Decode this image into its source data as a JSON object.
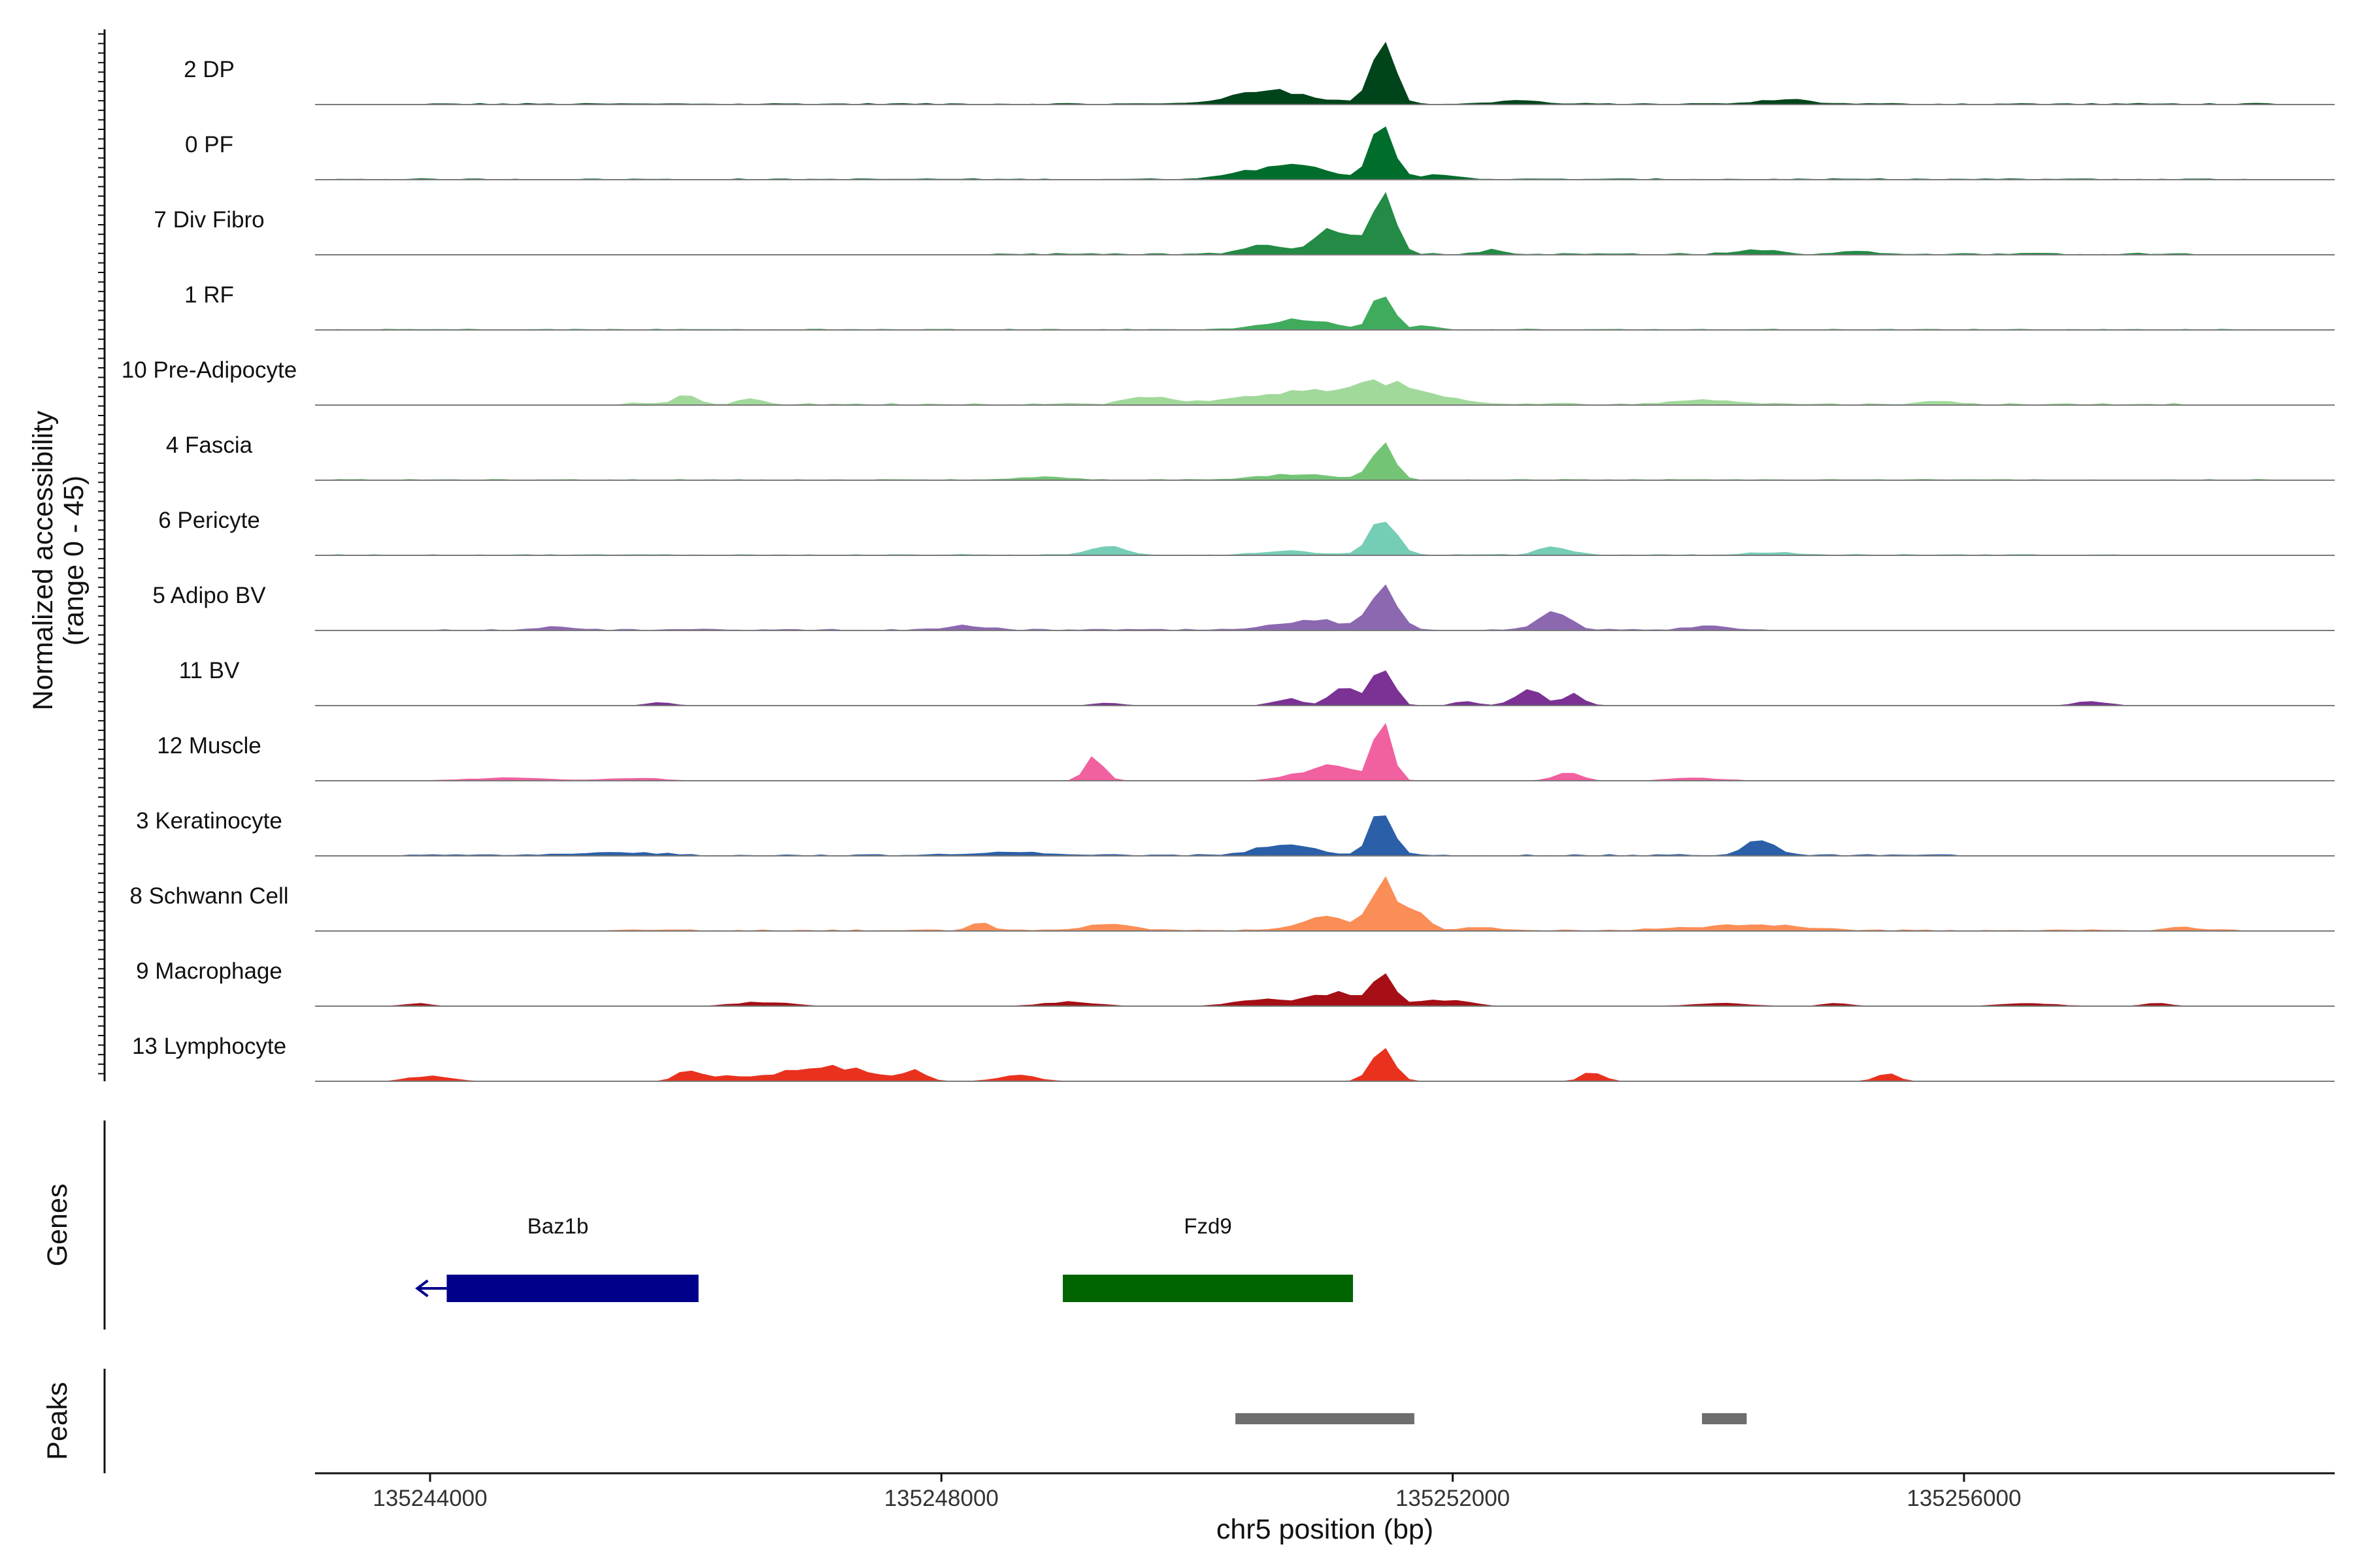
{
  "chart_data": {
    "type": "area",
    "title": "",
    "chromosome": "chr5",
    "xlabel": "chr5 position (bp)",
    "ylabel": "Normalized accessibility",
    "ylabel_range": "(range 0 - 45)",
    "xlim": [
      135243100,
      135258900
    ],
    "ylim": [
      0,
      45
    ],
    "x_ticks": [
      135244000,
      135248000,
      135252000,
      135256000
    ],
    "x_tick_labels": [
      "135244000",
      "135248000",
      "135252000",
      "135256000"
    ],
    "tracks": [
      {
        "name": "2 DP",
        "color": "#00441b",
        "peaks": [
          [
            135251450,
            45,
            90
          ],
          [
            135250600,
            10,
            300
          ],
          [
            135252500,
            3,
            150
          ],
          [
            135254600,
            3,
            200
          ]
        ],
        "noise_range": [
          135244000,
          135258400
        ],
        "noise_level": 0.9
      },
      {
        "name": "0 PF",
        "color": "#006d2c",
        "peaks": [
          [
            135251450,
            41,
            90
          ],
          [
            135250700,
            11,
            300
          ],
          [
            135251900,
            3,
            150
          ]
        ],
        "noise_range": [
          135243200,
          135258400
        ],
        "noise_level": 0.7
      },
      {
        "name": "7 Div Fibro",
        "color": "#238b45",
        "peaks": [
          [
            135251480,
            45,
            80
          ],
          [
            135251100,
            20,
            180
          ],
          [
            135250500,
            6,
            150
          ],
          [
            135252300,
            3,
            80
          ],
          [
            135254400,
            3,
            150
          ],
          [
            135255200,
            3,
            100
          ]
        ],
        "noise_range": [
          135248300,
          135257800
        ],
        "noise_level": 1.2
      },
      {
        "name": "1 RF",
        "color": "#41ab5d",
        "peaks": [
          [
            135251450,
            25,
            80
          ],
          [
            135250800,
            7,
            250
          ],
          [
            135251800,
            3,
            80
          ]
        ],
        "noise_range": [
          135243200,
          135258400
        ],
        "noise_level": 0.6
      },
      {
        "name": "10 Pre-Adipocyte",
        "color": "#a1d99b",
        "peaks": [
          [
            135246000,
            8,
            80
          ],
          [
            135246500,
            5,
            80
          ],
          [
            135250900,
            9,
            500
          ],
          [
            135251500,
            11,
            300
          ],
          [
            135249600,
            5,
            150
          ],
          [
            135254000,
            3,
            250
          ],
          [
            135255800,
            2,
            150
          ]
        ],
        "noise_range": [
          135245400,
          135257800
        ],
        "noise_level": 1.4
      },
      {
        "name": "4 Fascia",
        "color": "#74c476",
        "peaks": [
          [
            135251450,
            25,
            90
          ],
          [
            135250800,
            4,
            300
          ],
          [
            135248800,
            2,
            200
          ]
        ],
        "noise_range": [
          135243200,
          135258400
        ],
        "noise_level": 0.6
      },
      {
        "name": "6 Pericyte",
        "color": "#76cdb6",
        "peaks": [
          [
            135251450,
            25,
            100
          ],
          [
            135249300,
            6,
            120
          ],
          [
            135252800,
            6,
            120
          ],
          [
            135250700,
            3,
            200
          ],
          [
            135254500,
            2,
            150
          ]
        ],
        "noise_range": [
          135243200,
          135257200
        ],
        "noise_level": 0.7
      },
      {
        "name": "5 Adipo BV",
        "color": "#8b68b0",
        "peaks": [
          [
            135251450,
            33,
            100
          ],
          [
            135250900,
            7,
            250
          ],
          [
            135252800,
            13,
            110
          ],
          [
            135248200,
            3,
            150
          ],
          [
            135254000,
            3,
            150
          ],
          [
            135245000,
            2,
            150
          ]
        ],
        "noise_range": [
          135243900,
          135254500
        ],
        "noise_level": 1.0
      },
      {
        "name": "11 BV",
        "color": "#7b3294",
        "peaks": [
          [
            135251450,
            30,
            80
          ],
          [
            135251150,
            14,
            100
          ],
          [
            135250700,
            5,
            100
          ],
          [
            135252600,
            11,
            110
          ],
          [
            135252950,
            8,
            80
          ],
          [
            135252100,
            3,
            80
          ],
          [
            135249300,
            2,
            100
          ],
          [
            135257000,
            3,
            120
          ],
          [
            135245800,
            2,
            100
          ]
        ],
        "noise_range": [
          135245700,
          135257200
        ],
        "noise_level": 0.0
      },
      {
        "name": "12 Muscle",
        "color": "#f1609f",
        "peaks": [
          [
            135251450,
            43,
            70
          ],
          [
            135251100,
            10,
            150
          ],
          [
            135249200,
            18,
            70
          ],
          [
            135250800,
            5,
            150
          ],
          [
            135252900,
            6,
            100
          ],
          [
            135253900,
            2,
            200
          ],
          [
            135244600,
            2,
            300
          ],
          [
            135245600,
            2,
            200
          ]
        ],
        "noise_range": [
          135244100,
          135258300
        ],
        "noise_level": 0.0
      },
      {
        "name": "3 Keratinocyte",
        "color": "#2b5fa8",
        "peaks": [
          [
            135251450,
            33,
            90
          ],
          [
            135250700,
            9,
            200
          ],
          [
            135254400,
            10,
            120
          ],
          [
            135248600,
            2,
            300
          ],
          [
            135245500,
            2,
            300
          ]
        ],
        "noise_range": [
          135243800,
          135256000
        ],
        "noise_level": 1.0
      },
      {
        "name": "8 Schwann Cell",
        "color": "#fb8d56",
        "peaks": [
          [
            135251450,
            37,
            90
          ],
          [
            135251700,
            14,
            100
          ],
          [
            135251000,
            9,
            200
          ],
          [
            135248300,
            6,
            80
          ],
          [
            135249300,
            4,
            200
          ],
          [
            135254300,
            4,
            400
          ],
          [
            135257700,
            3,
            100
          ],
          [
            135252200,
            3,
            100
          ]
        ],
        "noise_range": [
          135245400,
          135258300
        ],
        "noise_level": 0.9
      },
      {
        "name": "9 Macrophage",
        "color": "#a50f15",
        "peaks": [
          [
            135251450,
            22,
            80
          ],
          [
            135251100,
            10,
            200
          ],
          [
            135250500,
            5,
            200
          ],
          [
            135251800,
            4,
            150
          ],
          [
            135246600,
            3,
            200
          ],
          [
            135249000,
            3,
            200
          ],
          [
            135252100,
            3,
            100
          ],
          [
            135254100,
            2,
            200
          ],
          [
            135255000,
            2,
            100
          ],
          [
            135256500,
            2,
            200
          ],
          [
            135257500,
            2,
            100
          ],
          [
            135243900,
            2,
            100
          ]
        ],
        "noise_range": [
          135243800,
          135258000
        ],
        "noise_level": 0.0
      },
      {
        "name": "13 Lymphocyte",
        "color": "#e8321e",
        "peaks": [
          [
            135251450,
            22,
            90
          ],
          [
            135246000,
            7,
            80
          ],
          [
            135247200,
            9,
            300
          ],
          [
            135247800,
            7,
            80
          ],
          [
            135246300,
            4,
            200
          ],
          [
            135246900,
            4,
            200
          ],
          [
            135248600,
            4,
            150
          ],
          [
            135253100,
            7,
            80
          ],
          [
            135255400,
            6,
            80
          ],
          [
            135244000,
            4,
            150
          ]
        ],
        "noise_range": [
          135243900,
          135255500
        ],
        "noise_level": 0.0
      }
    ],
    "genes": [
      {
        "name": "Baz1b",
        "start": 135243900,
        "end": 135246100,
        "color": "#00008b",
        "strand": "-"
      },
      {
        "name": "Fzd9",
        "start": 135248950,
        "end": 135251220,
        "color": "#006400",
        "strand": "+"
      }
    ],
    "genes_label": "Genes",
    "peaks_label": "Peaks",
    "peak_regions": [
      {
        "start": 135250300,
        "end": 135251700,
        "color": "#6e6e6e"
      },
      {
        "start": 135253950,
        "end": 135254300,
        "color": "#6e6e6e"
      }
    ]
  }
}
